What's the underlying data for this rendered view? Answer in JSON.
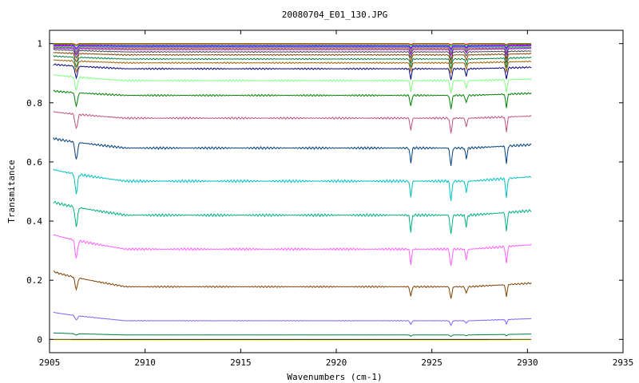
{
  "chart_data": {
    "type": "line",
    "title": "20080704_E01_130.JPG",
    "xlabel": "Wavenumbers (cm-1)",
    "ylabel": "Transmitance",
    "xlim": [
      2905,
      2935
    ],
    "ylim": [
      -0.045,
      1.045
    ],
    "x_ticks": [
      2905,
      2910,
      2915,
      2920,
      2925,
      2930,
      2935
    ],
    "y_ticks": [
      0,
      0.2,
      0.4,
      0.6,
      0.8,
      1
    ],
    "x_tick_labels": [
      "2905",
      "2910",
      "2915",
      "2920",
      "2925",
      "2930",
      "2935"
    ],
    "y_tick_labels": [
      "0",
      "0.2",
      "0.4",
      "0.6",
      "0.8",
      "1"
    ],
    "grid": false,
    "legend": "none",
    "x_range": [
      2905.2,
      2930.2
    ],
    "peaks": [
      {
        "x": 2906.4,
        "width": 0.09,
        "weight": 1.0
      },
      {
        "x": 2923.9,
        "width": 0.06,
        "weight": 0.85
      },
      {
        "x": 2926.0,
        "width": 0.07,
        "weight": 1.0
      },
      {
        "x": 2926.8,
        "width": 0.06,
        "weight": 0.6
      },
      {
        "x": 2928.9,
        "width": 0.06,
        "weight": 1.0
      }
    ],
    "series": [
      {
        "color": "#ff0000",
        "start": 1.0,
        "base": 1.0,
        "end": 1.0,
        "depth": 0.004
      },
      {
        "color": "#00c000",
        "start": 0.998,
        "base": 0.997,
        "end": 0.998,
        "depth": 0.006
      },
      {
        "color": "#0000ff",
        "start": 0.995,
        "base": 0.993,
        "end": 0.995,
        "depth": 0.01
      },
      {
        "color": "#ff00ff",
        "start": 0.993,
        "base": 0.99,
        "end": 0.993,
        "depth": 0.012
      },
      {
        "color": "#00c0c0",
        "start": 0.99,
        "base": 0.987,
        "end": 0.99,
        "depth": 0.015
      },
      {
        "color": "#c08000",
        "start": 0.988,
        "base": 0.984,
        "end": 0.987,
        "depth": 0.018
      },
      {
        "color": "#8000ff",
        "start": 0.985,
        "base": 0.98,
        "end": 0.984,
        "depth": 0.02
      },
      {
        "color": "#404040",
        "start": 0.98,
        "base": 0.972,
        "end": 0.975,
        "depth": 0.025
      },
      {
        "color": "#804000",
        "start": 0.97,
        "base": 0.962,
        "end": 0.966,
        "depth": 0.03
      },
      {
        "color": "#008040",
        "start": 0.958,
        "base": 0.948,
        "end": 0.953,
        "depth": 0.033
      },
      {
        "color": "#a06000",
        "start": 0.945,
        "base": 0.935,
        "end": 0.94,
        "depth": 0.035
      },
      {
        "color": "#000080",
        "start": 0.93,
        "base": 0.915,
        "end": 0.92,
        "depth": 0.04
      },
      {
        "color": "#80ff80",
        "start": 0.895,
        "base": 0.875,
        "end": 0.88,
        "depth": 0.045
      },
      {
        "color": "#008000",
        "start": 0.84,
        "base": 0.825,
        "end": 0.832,
        "depth": 0.045
      },
      {
        "color": "#c05080",
        "start": 0.77,
        "base": 0.748,
        "end": 0.755,
        "depth": 0.05
      },
      {
        "color": "#004080",
        "start": 0.68,
        "base": 0.647,
        "end": 0.658,
        "depth": 0.06
      },
      {
        "color": "#00c0c0",
        "start": 0.575,
        "base": 0.535,
        "end": 0.55,
        "depth": 0.065
      },
      {
        "color": "#00b080",
        "start": 0.465,
        "base": 0.42,
        "end": 0.435,
        "depth": 0.065
      },
      {
        "color": "#ff60ff",
        "start": 0.355,
        "base": 0.305,
        "end": 0.32,
        "depth": 0.06
      },
      {
        "color": "#804000",
        "start": 0.23,
        "base": 0.178,
        "end": 0.19,
        "depth": 0.04
      },
      {
        "color": "#8060ff",
        "start": 0.092,
        "base": 0.063,
        "end": 0.07,
        "depth": 0.015
      },
      {
        "color": "#008040",
        "start": 0.022,
        "base": 0.015,
        "end": 0.018,
        "depth": 0.005
      },
      {
        "color": "#000000",
        "start": 0.0,
        "base": 0.0,
        "end": 0.0,
        "depth": 0.0
      },
      {
        "color": "#ffff40",
        "start": -0.002,
        "base": -0.003,
        "end": -0.002,
        "depth": 0.0
      }
    ]
  }
}
